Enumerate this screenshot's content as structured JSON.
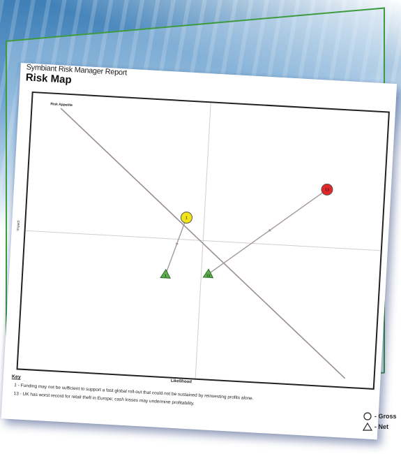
{
  "report": {
    "app_title": "Symbiant Risk Manager Report",
    "page_title": "Risk Map"
  },
  "chart_data": {
    "type": "scatter",
    "title": "Risk Map",
    "xlabel": "Likelihood",
    "ylabel": "Impact",
    "appetite_label": "Risk Appetite",
    "risks": [
      {
        "id": "1",
        "gross": {
          "x": 0.45,
          "y": 0.58
        },
        "net": {
          "x": 0.4,
          "y": 0.37
        },
        "gross_color": "#f2e21a"
      },
      {
        "id": "13",
        "gross": {
          "x": 0.84,
          "y": 0.71
        },
        "net": {
          "x": 0.52,
          "y": 0.38
        },
        "gross_color": "#e0282a"
      }
    ],
    "net_color": "#5fae4a"
  },
  "key": {
    "title": "Key",
    "items": [
      "1 - Funding may not be sufficient to support a fast global roll-out that could not be sustained by reinvesting profits alone.",
      "13 - UK has worst record for retail theft in Europe; cash losses may undermine profitability."
    ]
  },
  "legend": {
    "gross_label": "- Gross",
    "net_label": "- Net"
  }
}
